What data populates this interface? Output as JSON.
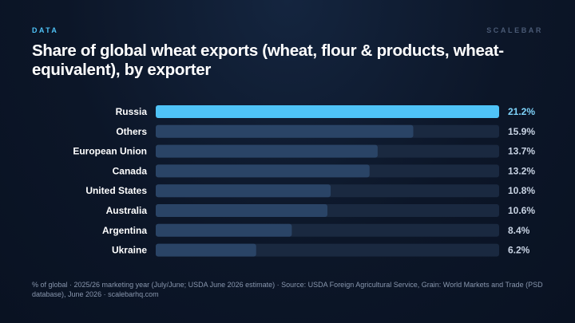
{
  "header": {
    "kicker": "DATA",
    "brand": "SCALEBAR",
    "title": "Share of global wheat exports (wheat, flour & products, wheat-equivalent), by exporter"
  },
  "footnote": "% of global · 2025/26 marketing year (July/June; USDA June 2026 estimate) · Source: USDA Foreign Agricultural Service, Grain: World Markets and Trade (PSD database), June 2026 · scalebarhq.com",
  "colors": {
    "highlight": "#4fc3f7",
    "bar": "#2a4466",
    "track": "#1a2940",
    "highlight_value": "#7fd4fb",
    "value_text": "#c8d3e3",
    "label_text": "#ffffff"
  },
  "chart_data": {
    "type": "bar",
    "orientation": "horizontal",
    "categories": [
      "Russia",
      "Others",
      "European Union",
      "Canada",
      "United States",
      "Australia",
      "Argentina",
      "Ukraine"
    ],
    "values": [
      21.2,
      15.9,
      13.7,
      13.2,
      10.8,
      10.6,
      8.4,
      6.2
    ],
    "value_labels": [
      "21.2%",
      "15.9%",
      "13.7%",
      "13.2%",
      "10.8%",
      "10.6%",
      "8.4%",
      "6.2%"
    ],
    "highlighted": "Russia",
    "xlim": [
      0,
      21.2
    ],
    "grid": false,
    "legend": "none"
  }
}
